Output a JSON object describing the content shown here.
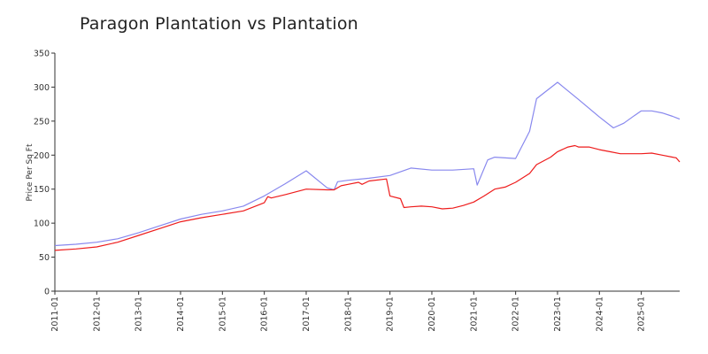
{
  "chart_data": {
    "type": "line",
    "title": "Paragon Plantation vs Plantation",
    "xlabel": "",
    "ylabel": "Price Per Sq Ft",
    "x_ticks": [
      "2011-01",
      "2012-01",
      "2013-01",
      "2014-01",
      "2015-01",
      "2016-01",
      "2017-01",
      "2018-01",
      "2019-01",
      "2020-01",
      "2021-01",
      "2022-01",
      "2023-01",
      "2024-01",
      "2025-01"
    ],
    "y_ticks": [
      0,
      50,
      100,
      150,
      200,
      250,
      300,
      350
    ],
    "xlim": [
      "2011-01",
      "2025-12"
    ],
    "ylim": [
      0,
      350
    ],
    "grid": false,
    "legend": "none",
    "series": [
      {
        "color": "#8888ee",
        "points": [
          [
            "2011-01",
            67
          ],
          [
            "2011-07",
            69
          ],
          [
            "2012-01",
            72
          ],
          [
            "2012-07",
            77
          ],
          [
            "2013-01",
            86
          ],
          [
            "2013-07",
            96
          ],
          [
            "2014-01",
            106
          ],
          [
            "2014-07",
            113
          ],
          [
            "2015-01",
            118
          ],
          [
            "2015-07",
            125
          ],
          [
            "2016-01",
            140
          ],
          [
            "2016-07",
            158
          ],
          [
            "2017-01",
            177
          ],
          [
            "2017-07",
            152
          ],
          [
            "2017-09",
            149
          ],
          [
            "2017-10",
            161
          ],
          [
            "2018-01",
            163
          ],
          [
            "2018-07",
            166
          ],
          [
            "2019-01",
            170
          ],
          [
            "2019-07",
            181
          ],
          [
            "2020-01",
            178
          ],
          [
            "2020-07",
            178
          ],
          [
            "2021-01",
            180
          ],
          [
            "2021-02",
            156
          ],
          [
            "2021-05",
            193
          ],
          [
            "2021-07",
            197
          ],
          [
            "2022-01",
            195
          ],
          [
            "2022-05",
            235
          ],
          [
            "2022-07",
            283
          ],
          [
            "2023-01",
            307
          ],
          [
            "2023-07",
            282
          ],
          [
            "2024-01",
            256
          ],
          [
            "2024-05",
            240
          ],
          [
            "2024-08",
            247
          ],
          [
            "2024-11",
            258
          ],
          [
            "2025-01",
            265
          ],
          [
            "2025-04",
            265
          ],
          [
            "2025-07",
            262
          ],
          [
            "2025-10",
            257
          ],
          [
            "2025-12",
            253
          ]
        ]
      },
      {
        "color": "#ee1c1c",
        "points": [
          [
            "2011-01",
            60
          ],
          [
            "2011-07",
            62
          ],
          [
            "2012-01",
            65
          ],
          [
            "2012-07",
            72
          ],
          [
            "2013-01",
            82
          ],
          [
            "2013-07",
            92
          ],
          [
            "2014-01",
            102
          ],
          [
            "2014-07",
            108
          ],
          [
            "2015-01",
            113
          ],
          [
            "2015-07",
            118
          ],
          [
            "2016-01",
            130
          ],
          [
            "2016-02",
            139
          ],
          [
            "2016-03",
            137
          ],
          [
            "2016-07",
            142
          ],
          [
            "2017-01",
            150
          ],
          [
            "2017-07",
            149
          ],
          [
            "2017-09",
            149
          ],
          [
            "2017-11",
            155
          ],
          [
            "2018-01",
            157
          ],
          [
            "2018-04",
            160
          ],
          [
            "2018-05",
            157
          ],
          [
            "2018-07",
            162
          ],
          [
            "2018-12",
            165
          ],
          [
            "2019-01",
            140
          ],
          [
            "2019-04",
            136
          ],
          [
            "2019-05",
            123
          ],
          [
            "2019-07",
            124
          ],
          [
            "2019-10",
            125
          ],
          [
            "2020-01",
            124
          ],
          [
            "2020-04",
            121
          ],
          [
            "2020-07",
            122
          ],
          [
            "2020-10",
            126
          ],
          [
            "2021-01",
            131
          ],
          [
            "2021-04",
            140
          ],
          [
            "2021-07",
            150
          ],
          [
            "2021-10",
            153
          ],
          [
            "2022-01",
            160
          ],
          [
            "2022-05",
            173
          ],
          [
            "2022-07",
            186
          ],
          [
            "2022-11",
            197
          ],
          [
            "2023-01",
            205
          ],
          [
            "2023-04",
            212
          ],
          [
            "2023-06",
            214
          ],
          [
            "2023-07",
            212
          ],
          [
            "2023-10",
            212
          ],
          [
            "2024-01",
            208
          ],
          [
            "2024-04",
            205
          ],
          [
            "2024-07",
            202
          ],
          [
            "2025-01",
            202
          ],
          [
            "2025-04",
            203
          ],
          [
            "2025-07",
            200
          ],
          [
            "2025-10",
            197
          ],
          [
            "2025-11",
            196
          ],
          [
            "2025-12",
            190
          ]
        ]
      }
    ]
  }
}
